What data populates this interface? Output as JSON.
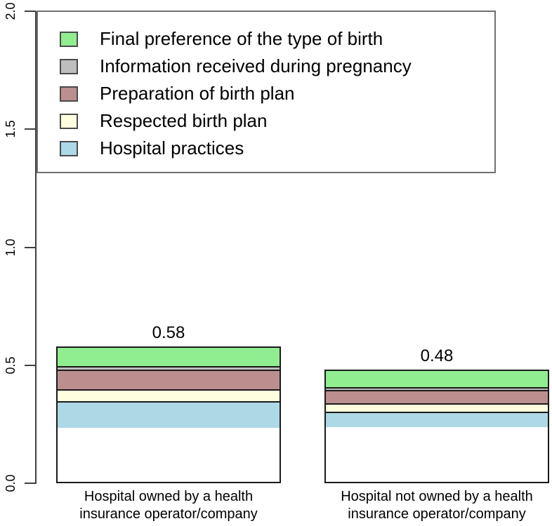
{
  "chart_data": {
    "type": "bar",
    "subtype": "stacked-vertical",
    "title": "",
    "xlabel": "",
    "ylabel": "",
    "categories": [
      [
        "Hospital owned by a health",
        "insurance operator/company"
      ],
      [
        "Hospital not owned by a health",
        "insurance operator/company"
      ]
    ],
    "totals": {
      "labels": [
        "0.58",
        "0.48"
      ],
      "values": [
        0.58,
        0.48
      ]
    },
    "series": [
      {
        "name": "Hospital practices",
        "color": "#ADD8E6",
        "values": [
          0.195,
          0.137
        ]
      },
      {
        "name": "Respected birth plan",
        "color": "#FFFFE0",
        "values": [
          0.083,
          0.065
        ]
      },
      {
        "name": "Preparation of birth plan",
        "color": "#BC8F8F",
        "values": [
          0.142,
          0.116
        ]
      },
      {
        "name": "Information received during pregnancy",
        "color": "#BEBEBE",
        "values": [
          0.015,
          0.013
        ]
      },
      {
        "name": "Final preference of the type of birth",
        "color": "#90EE90",
        "values": [
          0.145,
          0.149
        ]
      }
    ],
    "stack_order_bottom_to_top": [
      "Hospital practices",
      "Respected birth plan",
      "Preparation of birth plan",
      "Information received during pregnancy",
      "Final preference of the type of birth"
    ],
    "legend": {
      "position": "top",
      "entries_top_to_bottom": [
        {
          "label": "Final preference of the type of birth",
          "color": "#90EE90"
        },
        {
          "label": "Information received during pregnancy",
          "color": "#BEBEBE"
        },
        {
          "label": "Preparation of birth plan",
          "color": "#BC8F8F"
        },
        {
          "label": "Respected birth plan",
          "color": "#FFFFE0"
        },
        {
          "label": "Hospital practices",
          "color": "#ADD8E6"
        }
      ]
    },
    "y_axis": {
      "ticks": [
        "0.0",
        "0.5",
        "1.0",
        "1.5",
        "2.0"
      ],
      "ylim": [
        0,
        2
      ]
    },
    "grid": false,
    "background": "#FFFFFF"
  },
  "colors": {
    "bar_border": "#1A1A1A",
    "axis": "#404040",
    "legend_border": "#707070",
    "text": "#000000"
  }
}
